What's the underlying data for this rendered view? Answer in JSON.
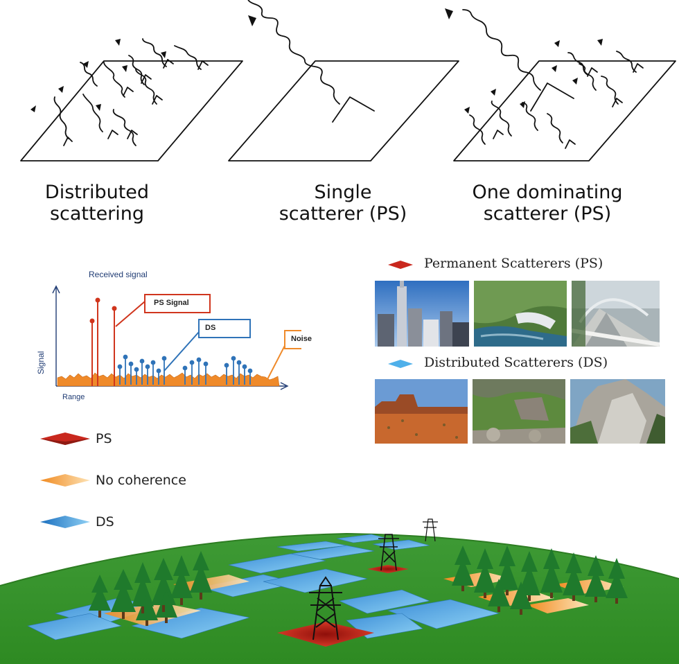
{
  "scattering_panels": [
    {
      "title": "Distributed\nscattering"
    },
    {
      "title": "Single\nscatterer (PS)"
    },
    {
      "title": "One dominating\nscatterer (PS)"
    }
  ],
  "signal_plot": {
    "title": "Received signal",
    "y_axis_label": "Signal",
    "x_axis_label": "Range",
    "callouts": {
      "ps": "PS Signal",
      "ds": "DS",
      "noise": "Noise"
    },
    "colors": {
      "ps": "#d0351d",
      "ds": "#2f73b8",
      "noise": "#ef8a2a"
    }
  },
  "photo_legend": {
    "ps_heading": "Permanent Scatterers (PS)",
    "ds_heading": "Distributed Scatterers (DS)",
    "ps_photos": [
      "city-skyline",
      "dam",
      "bridge"
    ],
    "ds_photos": [
      "desert",
      "rocky-slope",
      "mountain-cliff"
    ]
  },
  "landscape_legend": [
    {
      "label": "PS",
      "color": "#c9281e"
    },
    {
      "label": "No coherence",
      "color": "#f4a340"
    },
    {
      "label": "DS",
      "color": "#2f8fde"
    }
  ]
}
